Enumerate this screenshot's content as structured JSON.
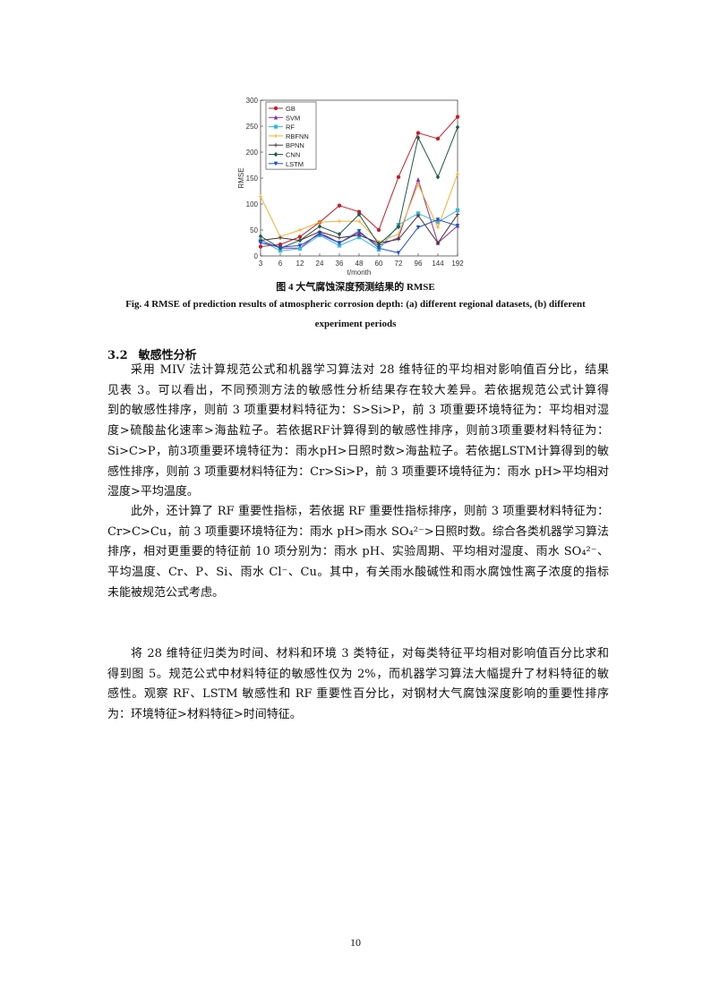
{
  "figure": {
    "caption_cn": "图 4 大气腐蚀深度预测结果的 RMSE",
    "caption_en_line1": "Fig. 4 RMSE of prediction results of atmospheric corrosion depth: (a) different regional datasets, (b) different",
    "caption_en_line2": "experiment periods"
  },
  "chart_data": {
    "type": "line",
    "xlabel": "t/month",
    "ylabel": "RMSE",
    "categories": [
      "3",
      "6",
      "12",
      "24",
      "36",
      "48",
      "60",
      "72",
      "96",
      "144",
      "192"
    ],
    "ylim": [
      0,
      300
    ],
    "yticks": [
      "0",
      "50",
      "100",
      "150",
      "200",
      "250",
      "300"
    ],
    "grid": false,
    "legend_position": "top-left",
    "series": [
      {
        "name": "GB",
        "color": "#c0202a",
        "marker": "circle",
        "values": [
          18,
          22,
          37,
          65,
          97,
          85,
          50,
          152,
          237,
          226,
          268
        ]
      },
      {
        "name": "SVM",
        "color": "#8a2f9a",
        "marker": "triangle",
        "values": [
          30,
          15,
          15,
          45,
          25,
          45,
          20,
          35,
          147,
          25,
          58
        ]
      },
      {
        "name": "RF",
        "color": "#3fb8d8",
        "marker": "square",
        "values": [
          30,
          10,
          14,
          40,
          20,
          36,
          12,
          60,
          82,
          65,
          88
        ]
      },
      {
        "name": "RBFNN",
        "color": "#f0b030",
        "marker": "plus",
        "values": [
          115,
          37,
          50,
          65,
          67,
          67,
          27,
          42,
          138,
          55,
          158
        ]
      },
      {
        "name": "BPNN",
        "color": "#4a3030",
        "marker": "plus",
        "values": [
          30,
          35,
          30,
          47,
          35,
          40,
          25,
          32,
          78,
          25,
          80
        ]
      },
      {
        "name": "CNN",
        "color": "#1f5a4a",
        "marker": "diamond",
        "values": [
          38,
          15,
          30,
          57,
          42,
          80,
          22,
          56,
          228,
          152,
          248
        ]
      },
      {
        "name": "LSTM",
        "color": "#1f4fc8",
        "marker": "triangle-down",
        "values": [
          25,
          17,
          20,
          42,
          25,
          48,
          15,
          6,
          55,
          70,
          58
        ]
      }
    ]
  },
  "section": {
    "number": "3.2",
    "title": "敏感性分析"
  },
  "paragraphs": [
    [
      "采用 MIV 法计算规范公式和机器学习算法对 28 维特征的平均相对影响值百分比，结果",
      "见表 3。可以看出，不同预测方法的敏感性分析结果存在较大差异。若依据规范公式计算得",
      "到的敏感性排序，则前 3 项重要材料特征为：S>Si>P，前 3 项重要环境特征为：平均相对湿",
      "度>硫酸盐化速率>海盐粒子。若依据RF计算得到的敏感性排序，则前3项重要材料特征为：",
      "Si>C>P，前3项重要环境特征为：雨水pH>日照时数>海盐粒子。若依据LSTM计算得到的敏",
      "感性排序，则前 3 项重要材料特征为：Cr>Si>P，前 3 项重要环境特征为：雨水 pH>平均相对",
      "湿度>平均温度。"
    ],
    [
      "此外，还计算了 RF 重要性指标，若依据 RF 重要性指标排序，则前 3 项重要材料特征为：",
      "Cr>C>Cu，前 3 项重要环境特征为：雨水 pH>雨水 SO₄²⁻>日照时数。综合各类机器学习算法",
      "排序，相对更重要的特征前 10 项分别为：雨水 pH、实验周期、平均相对湿度、雨水 SO₄²⁻、",
      "平均温度、Cr、P、Si、雨水 Cl⁻、Cu。其中，有关雨水酸碱性和雨水腐蚀性离子浓度的指标",
      "未能被规范公式考虑。"
    ],
    [
      "将 28 维特征归类为时间、材料和环境 3 类特征，对每类特征平均相对影响值百分比求和",
      "得到图 5。规范公式中材料特征的敏感性仅为 2%，而机器学习算法大幅提升了材料特征的敏",
      "感性。观察 RF、LSTM 敏感性和 RF 重要性百分比，对钢材大气腐蚀深度影响的重要性排序",
      "为：环境特征>材料特征>时间特征。"
    ]
  ],
  "page_number": "10"
}
